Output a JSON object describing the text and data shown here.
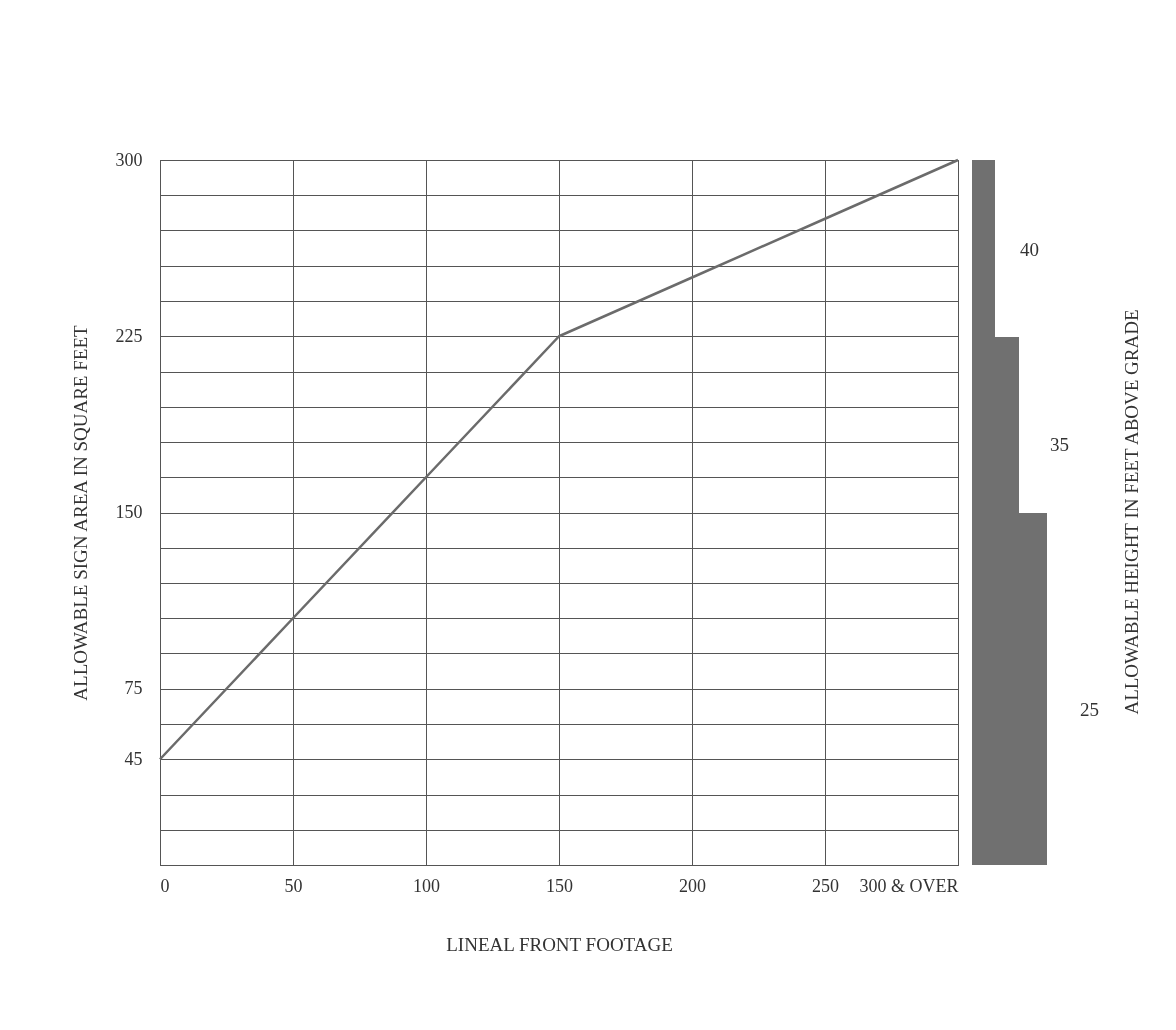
{
  "chart_data": [
    {
      "type": "line",
      "xlabel": "LINEAL FRONT FOOTAGE",
      "ylabel": "ALLOWABLE SIGN AREA IN SQUARE FEET",
      "x": [
        0,
        50,
        100,
        150,
        200,
        250,
        300
      ],
      "series": [
        {
          "color": "#6b6b6b",
          "values": [
            45,
            105,
            165,
            225,
            250,
            275,
            300
          ]
        }
      ],
      "xlim": [
        0,
        300
      ],
      "xticks": [
        0,
        50,
        100,
        150,
        200,
        250,
        {
          "value": 300,
          "label": "300 & OVER"
        }
      ],
      "ylim": [
        0,
        300
      ],
      "yticks": [
        {
          "value": 0,
          "label": null
        },
        {
          "value": 15,
          "label": null
        },
        {
          "value": 30,
          "label": null
        },
        45,
        {
          "value": 60,
          "label": null
        },
        75,
        {
          "value": 90,
          "label": null
        },
        {
          "value": 105,
          "label": null
        },
        {
          "value": 120,
          "label": null
        },
        {
          "value": 135,
          "label": null
        },
        150,
        {
          "value": 165,
          "label": null
        },
        {
          "value": 180,
          "label": null
        },
        {
          "value": 195,
          "label": null
        },
        {
          "value": 210,
          "label": null
        },
        225,
        {
          "value": 240,
          "label": null
        },
        {
          "value": 255,
          "label": null
        },
        {
          "value": 270,
          "label": null
        },
        {
          "value": 285,
          "label": null
        },
        300
      ],
      "grid": true,
      "legend": false,
      "marker": "none",
      "line_style": "solid"
    },
    {
      "type": "other",
      "ylabel": "ALLOWABLE HEIGHT IN FEET ABOVE GRADE",
      "annotations": [
        "40",
        "35",
        "25"
      ]
    }
  ]
}
